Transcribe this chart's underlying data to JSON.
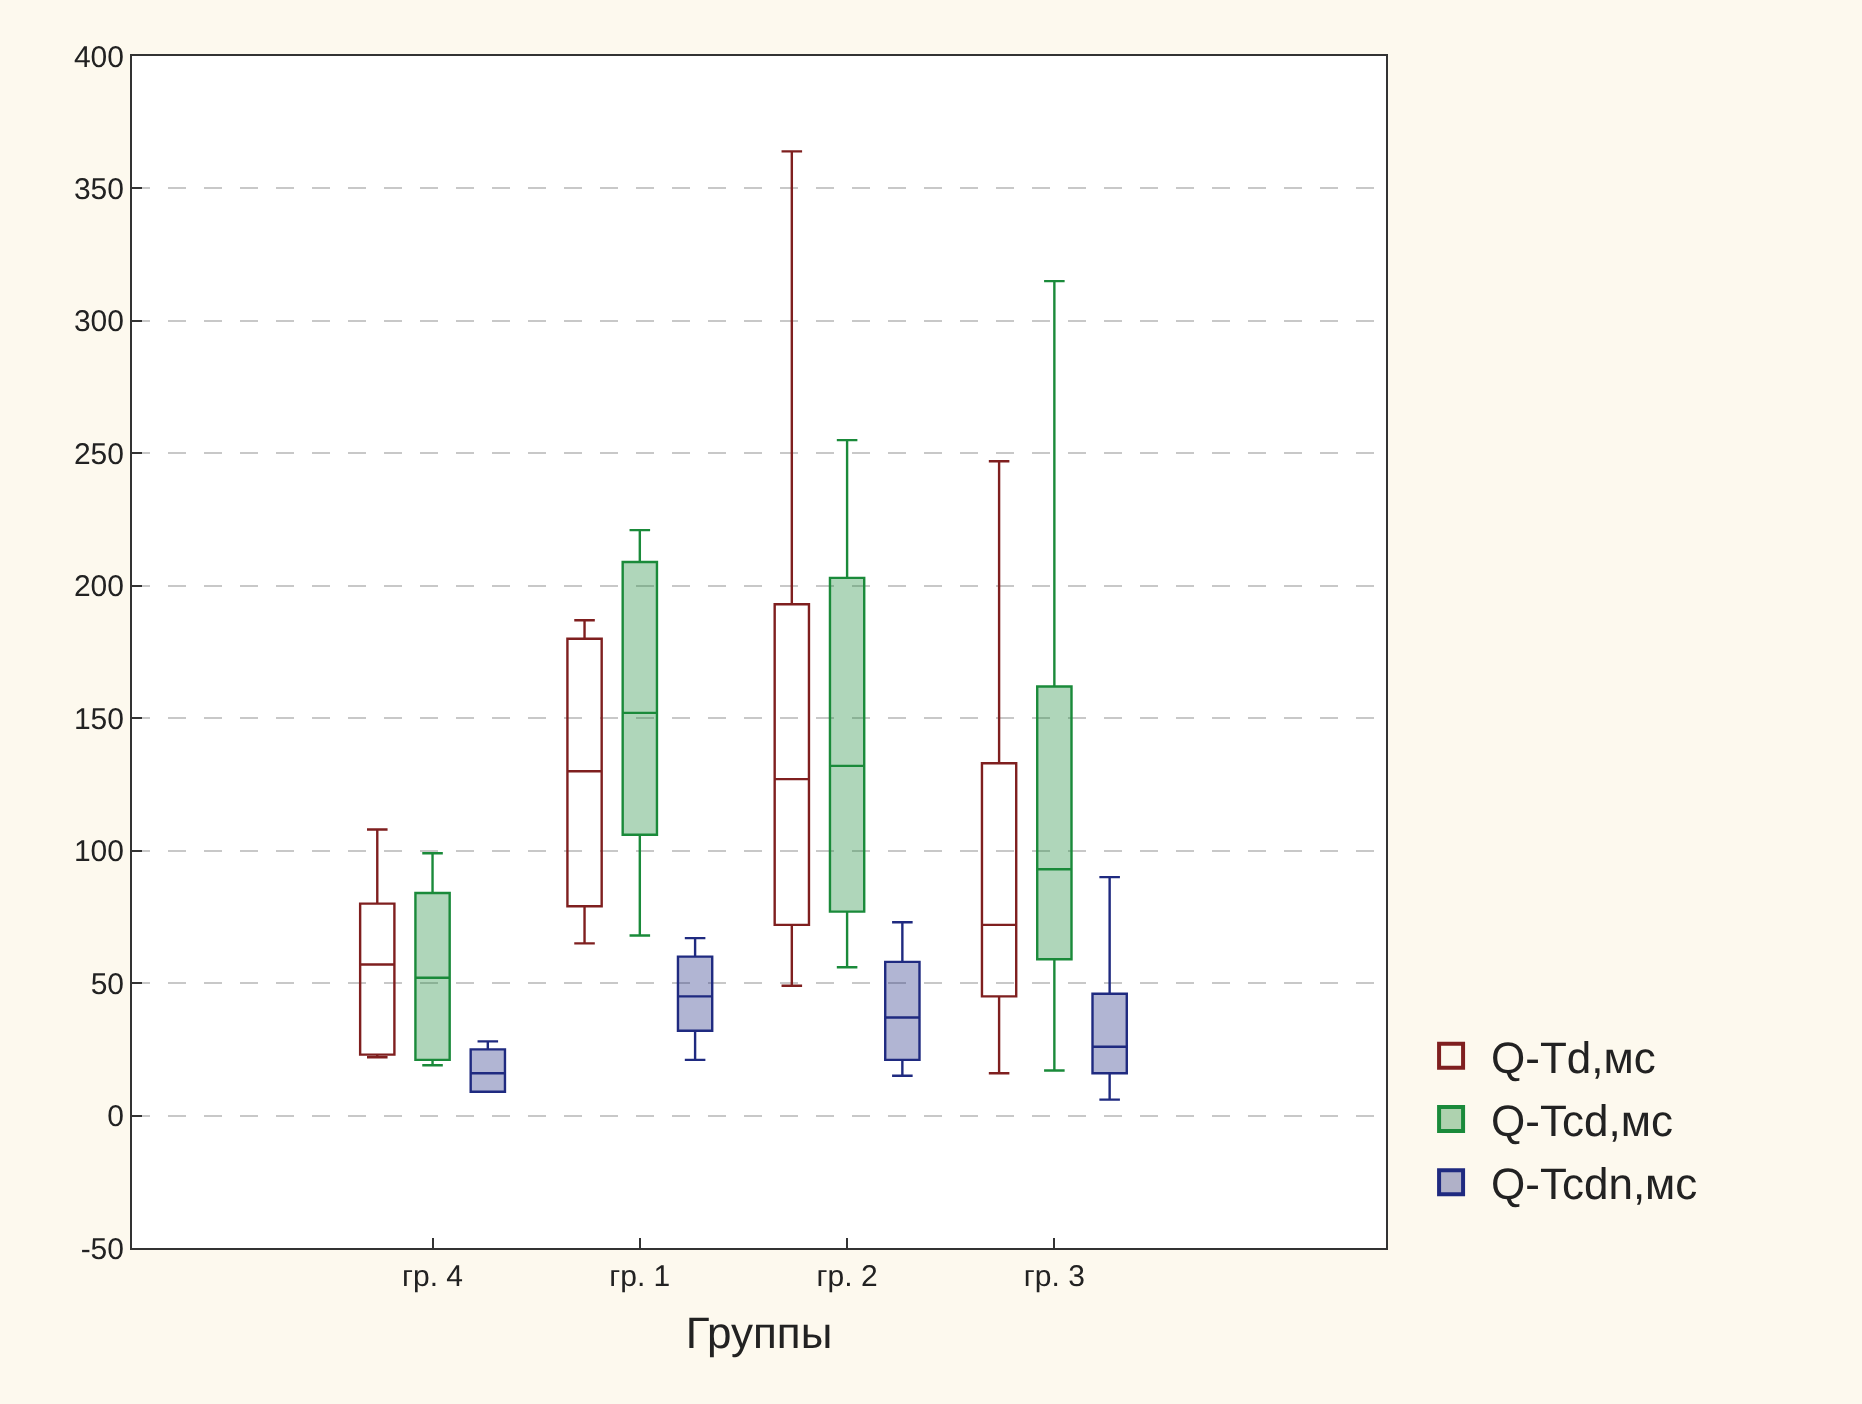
{
  "chart_data": {
    "type": "box",
    "xlabel": "Группы",
    "categories": [
      "гр. 4",
      "гр. 1",
      "гр. 2",
      "гр. 3"
    ],
    "ylim": [
      -50,
      400
    ],
    "yticks": [
      -50,
      0,
      50,
      100,
      150,
      200,
      250,
      300,
      350,
      400
    ],
    "grid": "y",
    "legend": "bottom right",
    "series": [
      {
        "name": "Q-Td,мс",
        "color": "#7f1f1f",
        "boxes": [
          {
            "low": 22,
            "q1": 23,
            "median": 57,
            "q3": 80,
            "high": 108
          },
          {
            "low": 65,
            "q1": 79,
            "median": 130,
            "q3": 180,
            "high": 187
          },
          {
            "low": 49,
            "q1": 72,
            "median": 127,
            "q3": 193,
            "high": 364
          },
          {
            "low": 16,
            "q1": 45,
            "median": 72,
            "q3": 133,
            "high": 247
          }
        ]
      },
      {
        "name": "Q-Tcd,мс",
        "color": "#1a8a3a",
        "boxes": [
          {
            "low": 19,
            "q1": 21,
            "median": 52,
            "q3": 84,
            "high": 99
          },
          {
            "low": 68,
            "q1": 106,
            "median": 152,
            "q3": 209,
            "high": 221
          },
          {
            "low": 56,
            "q1": 77,
            "median": 132,
            "q3": 203,
            "high": 255
          },
          {
            "low": 17,
            "q1": 59,
            "median": 93,
            "q3": 162,
            "high": 315
          }
        ]
      },
      {
        "name": "Q-Tcdn,мс",
        "color": "#1f2a80",
        "boxes": [
          {
            "low": 9,
            "q1": 9,
            "median": 16,
            "q3": 25,
            "high": 28
          },
          {
            "low": 21,
            "q1": 32,
            "median": 45,
            "q3": 60,
            "high": 67
          },
          {
            "low": 15,
            "q1": 21,
            "median": 37,
            "q3": 58,
            "high": 73
          },
          {
            "low": 6,
            "q1": 16,
            "median": 26,
            "q3": 46,
            "high": 90
          }
        ]
      }
    ]
  }
}
